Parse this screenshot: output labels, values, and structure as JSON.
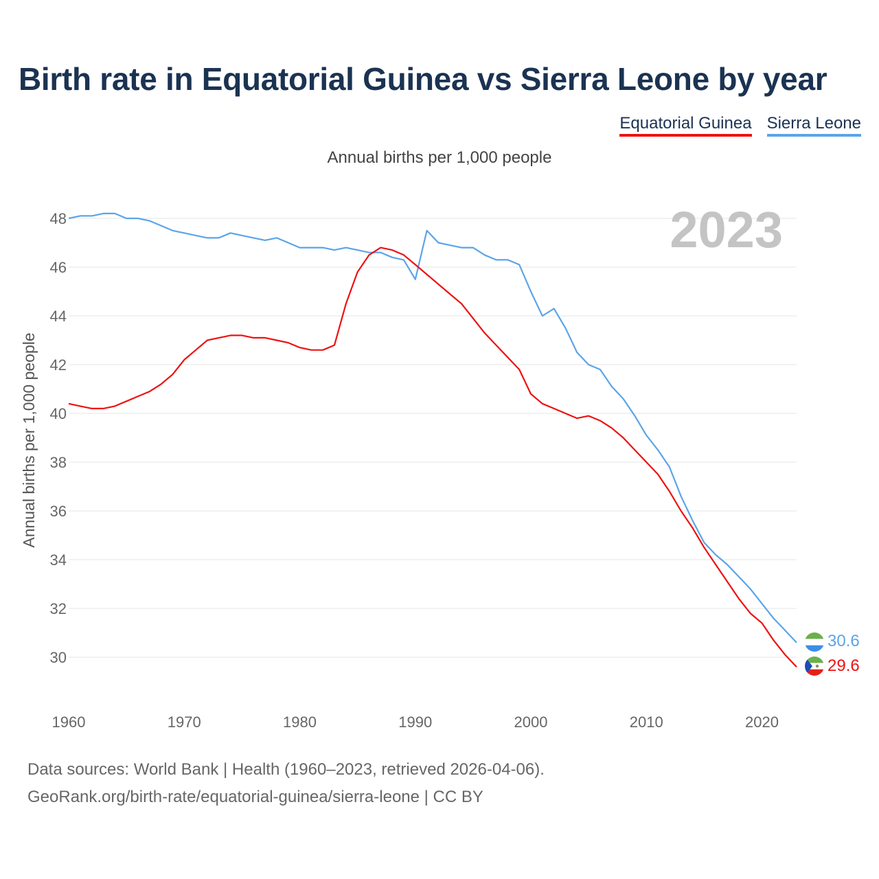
{
  "header": {
    "title": "Birth rate in Equatorial Guinea vs Sierra Leone by year",
    "subtitle": "Annual births per 1,000 people"
  },
  "legend": {
    "items": [
      {
        "label": "Equatorial Guinea",
        "color": "#ee1111"
      },
      {
        "label": "Sierra Leone",
        "color": "#5ba4e8"
      }
    ]
  },
  "footer": {
    "line1": "Data sources: World Bank | Health (1960–2023, retrieved 2026-04-06).",
    "line2": "GeoRank.org/birth-rate/equatorial-guinea/sierra-leone | CC BY"
  },
  "chart_data": {
    "type": "line",
    "year_label": "2023",
    "ylabel": "Annual births per 1,000 people",
    "xlabel": "",
    "xlim": [
      1960,
      2023
    ],
    "ylim": [
      28.5,
      49
    ],
    "x_ticks": [
      1960,
      1970,
      1980,
      1990,
      2000,
      2010,
      2020
    ],
    "y_ticks": [
      30,
      32,
      34,
      36,
      38,
      40,
      42,
      44,
      46,
      48
    ],
    "grid": true,
    "x": [
      1960,
      1961,
      1962,
      1963,
      1964,
      1965,
      1966,
      1967,
      1968,
      1969,
      1970,
      1971,
      1972,
      1973,
      1974,
      1975,
      1976,
      1977,
      1978,
      1979,
      1980,
      1981,
      1982,
      1983,
      1984,
      1985,
      1986,
      1987,
      1988,
      1989,
      1990,
      1991,
      1992,
      1993,
      1994,
      1995,
      1996,
      1997,
      1998,
      1999,
      2000,
      2001,
      2002,
      2003,
      2004,
      2005,
      2006,
      2007,
      2008,
      2009,
      2010,
      2011,
      2012,
      2013,
      2014,
      2015,
      2016,
      2017,
      2018,
      2019,
      2020,
      2021,
      2022,
      2023
    ],
    "series": [
      {
        "name": "Equatorial Guinea",
        "color": "#ee1111",
        "end_label": "29.6",
        "values": [
          40.4,
          40.3,
          40.2,
          40.2,
          40.3,
          40.5,
          40.7,
          40.9,
          41.2,
          41.6,
          42.2,
          42.6,
          43.0,
          43.1,
          43.2,
          43.2,
          43.1,
          43.1,
          43.0,
          42.9,
          42.7,
          42.6,
          42.6,
          42.8,
          44.5,
          45.8,
          46.5,
          46.8,
          46.7,
          46.5,
          46.1,
          45.7,
          45.3,
          44.9,
          44.5,
          43.9,
          43.3,
          42.8,
          42.3,
          41.8,
          40.8,
          40.4,
          40.2,
          40.0,
          39.8,
          39.9,
          39.7,
          39.4,
          39.0,
          38.5,
          38.0,
          37.5,
          36.8,
          36.0,
          35.3,
          34.5,
          33.8,
          33.1,
          32.4,
          31.8,
          31.4,
          30.7,
          30.1,
          29.6
        ]
      },
      {
        "name": "Sierra Leone",
        "color": "#5ba4e8",
        "end_label": "30.6",
        "values": [
          48.0,
          48.1,
          48.1,
          48.2,
          48.2,
          48.0,
          48.0,
          47.9,
          47.7,
          47.5,
          47.4,
          47.3,
          47.2,
          47.2,
          47.4,
          47.3,
          47.2,
          47.1,
          47.2,
          47.0,
          46.8,
          46.8,
          46.8,
          46.7,
          46.8,
          46.7,
          46.6,
          46.6,
          46.4,
          46.3,
          45.5,
          47.5,
          47.0,
          46.9,
          46.8,
          46.8,
          46.5,
          46.3,
          46.3,
          46.1,
          45.0,
          44.0,
          44.3,
          43.5,
          42.5,
          42.0,
          41.8,
          41.1,
          40.6,
          39.9,
          39.1,
          38.5,
          37.8,
          36.6,
          35.6,
          34.7,
          34.2,
          33.8,
          33.3,
          32.8,
          32.2,
          31.6,
          31.1,
          30.6
        ]
      }
    ]
  }
}
